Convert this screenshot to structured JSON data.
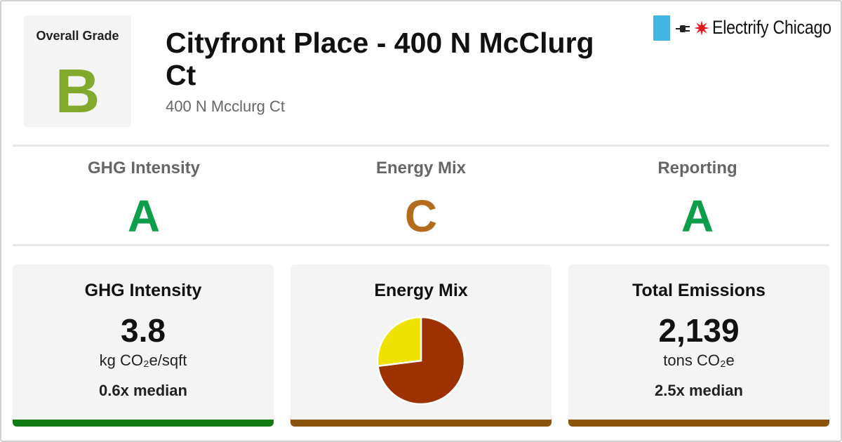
{
  "header": {
    "overall_grade_label": "Overall Grade",
    "overall_grade": "B",
    "building_name": "Cityfront Place - 400 N McClurg Ct",
    "address": "400 N Mcclurg Ct"
  },
  "logo": {
    "brand": "Electrify Chicago"
  },
  "sub_grades": [
    {
      "label": "GHG Intensity",
      "grade": "A",
      "color": "#0e9e4a"
    },
    {
      "label": "Energy Mix",
      "grade": "C",
      "color": "#b36b1e"
    },
    {
      "label": "Reporting",
      "grade": "A",
      "color": "#0e9e4a"
    }
  ],
  "cards": {
    "ghg": {
      "title": "GHG Intensity",
      "value": "3.8",
      "unit": "kg CO₂e/sqft",
      "median": "0.6x median",
      "bar_color": "#127a12"
    },
    "mix": {
      "title": "Energy Mix",
      "bar_color": "#8a540c"
    },
    "emissions": {
      "title": "Total Emissions",
      "value": "2,139",
      "unit": "tons CO₂e",
      "median": "2.5x median",
      "bar_color": "#8a540c"
    }
  },
  "chart_data": {
    "type": "pie",
    "values": [
      73,
      27
    ],
    "colors": [
      "#9e3100",
      "#ede200"
    ]
  },
  "colors": {
    "overall_grade": "#82a82c"
  }
}
